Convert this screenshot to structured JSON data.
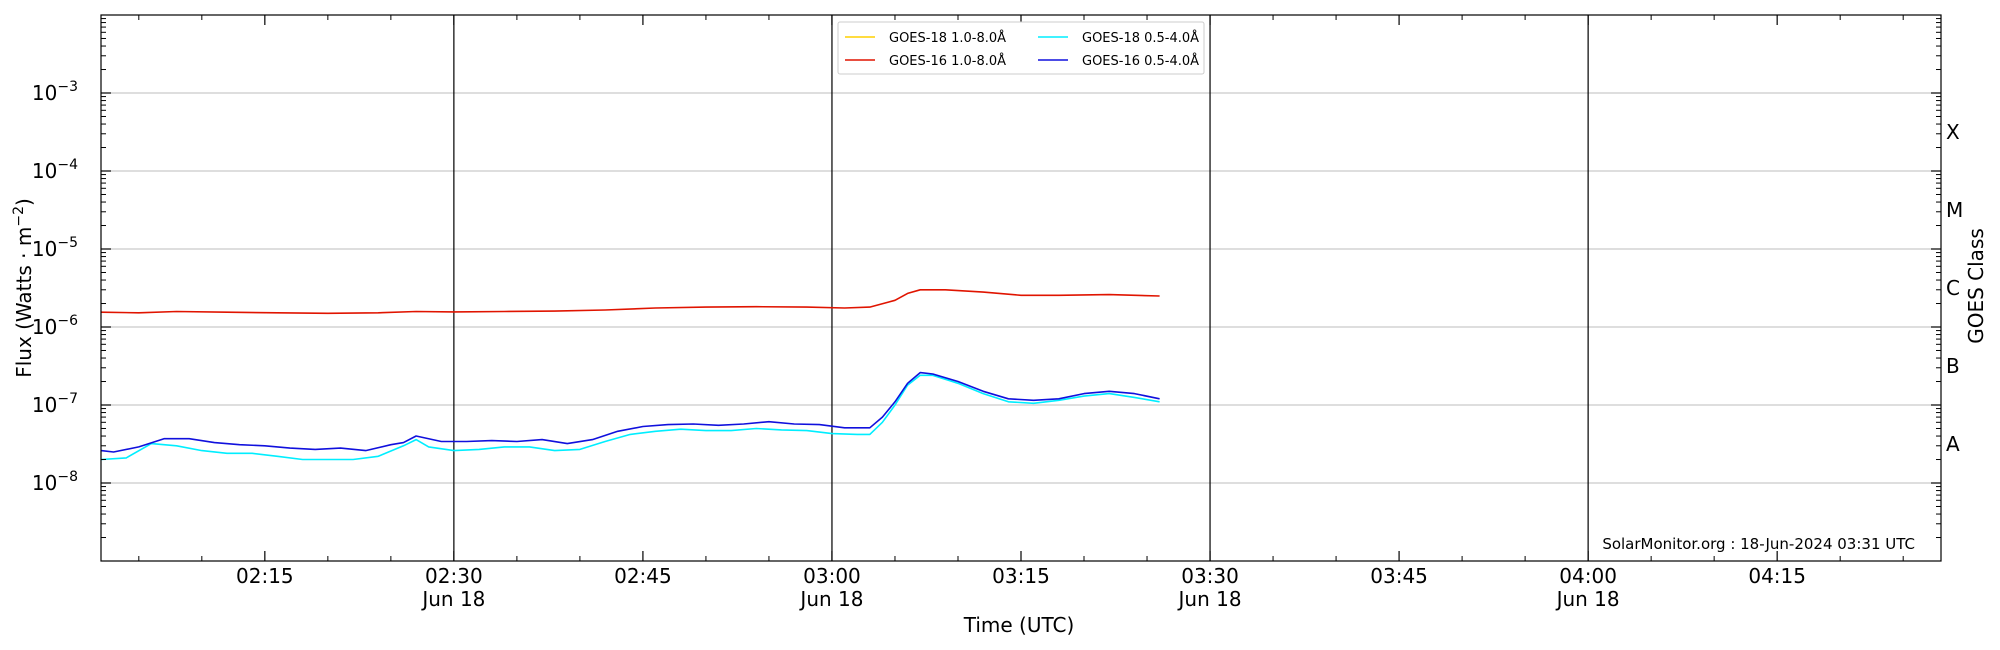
{
  "chart_data": {
    "type": "line",
    "x_axis": {
      "label": "Time (UTC)",
      "range": [
        "02:02",
        "04:28"
      ],
      "ticks": [
        {
          "time": "02:15",
          "label": "02:15",
          "sublabel": ""
        },
        {
          "time": "02:30",
          "label": "02:30",
          "sublabel": "Jun 18"
        },
        {
          "time": "02:45",
          "label": "02:45",
          "sublabel": ""
        },
        {
          "time": "03:00",
          "label": "03:00",
          "sublabel": "Jun 18"
        },
        {
          "time": "03:15",
          "label": "03:15",
          "sublabel": ""
        },
        {
          "time": "03:30",
          "label": "03:30",
          "sublabel": "Jun 18"
        },
        {
          "time": "03:45",
          "label": "03:45",
          "sublabel": ""
        },
        {
          "time": "04:00",
          "label": "04:00",
          "sublabel": "Jun 18"
        },
        {
          "time": "04:15",
          "label": "04:15",
          "sublabel": ""
        }
      ],
      "vertical_lines": [
        "02:30",
        "03:00",
        "03:30",
        "04:00"
      ]
    },
    "y_axis": {
      "label": "Flux (Watts · m",
      "label_sup": "−2",
      "label_end": ")",
      "scale": "log",
      "range": [
        1e-09,
        0.01
      ],
      "ticks": [
        {
          "value": 1e-08,
          "base": "10",
          "exp": "−8"
        },
        {
          "value": 1e-07,
          "base": "10",
          "exp": "−7"
        },
        {
          "value": 1e-06,
          "base": "10",
          "exp": "−6"
        },
        {
          "value": 1e-05,
          "base": "10",
          "exp": "−5"
        },
        {
          "value": 0.0001,
          "base": "10",
          "exp": "−4"
        },
        {
          "value": 0.001,
          "base": "10",
          "exp": "−3"
        }
      ],
      "grid": true
    },
    "right_axis": {
      "label": "GOES Class",
      "classes": [
        {
          "name": "A",
          "value": 3.16e-08
        },
        {
          "name": "B",
          "value": 3.16e-07
        },
        {
          "name": "C",
          "value": 3.16e-06
        },
        {
          "name": "M",
          "value": 3.16e-05
        },
        {
          "name": "X",
          "value": 0.000316
        }
      ]
    },
    "legend": {
      "placement": "top-center",
      "entries": [
        {
          "label": "GOES-18 1.0-8.0Å",
          "color": "#ffd000"
        },
        {
          "label": "GOES-18 0.5-4.0Å",
          "color": "#00eeff"
        },
        {
          "label": "GOES-16 1.0-8.0Å",
          "color": "#e01400"
        },
        {
          "label": "GOES-16 0.5-4.0Å",
          "color": "#1010dd"
        }
      ]
    },
    "annotation": "SolarMonitor.org : 18-Jun-2024 03:31 UTC",
    "series": [
      {
        "name": "GOES-16 1.0-8.0Å",
        "color": "#e01400",
        "points": [
          [
            "02:02",
            1.55e-06
          ],
          [
            "02:05",
            1.52e-06
          ],
          [
            "02:08",
            1.58e-06
          ],
          [
            "02:12",
            1.55e-06
          ],
          [
            "02:16",
            1.52e-06
          ],
          [
            "02:20",
            1.5e-06
          ],
          [
            "02:24",
            1.52e-06
          ],
          [
            "02:27",
            1.58e-06
          ],
          [
            "02:30",
            1.56e-06
          ],
          [
            "02:34",
            1.58e-06
          ],
          [
            "02:38",
            1.6e-06
          ],
          [
            "02:42",
            1.65e-06
          ],
          [
            "02:46",
            1.75e-06
          ],
          [
            "02:50",
            1.8e-06
          ],
          [
            "02:54",
            1.82e-06
          ],
          [
            "02:58",
            1.8e-06
          ],
          [
            "03:01",
            1.75e-06
          ],
          [
            "03:03",
            1.8e-06
          ],
          [
            "03:05",
            2.2e-06
          ],
          [
            "03:06",
            2.7e-06
          ],
          [
            "03:07",
            3e-06
          ],
          [
            "03:09",
            3e-06
          ],
          [
            "03:12",
            2.8e-06
          ],
          [
            "03:15",
            2.55e-06
          ],
          [
            "03:18",
            2.55e-06
          ],
          [
            "03:22",
            2.6e-06
          ],
          [
            "03:26",
            2.5e-06
          ]
        ]
      },
      {
        "name": "GOES-18 0.5-4.0Å",
        "color": "#00eeff",
        "points": [
          [
            "02:02",
            2e-08
          ],
          [
            "02:04",
            2.1e-08
          ],
          [
            "02:06",
            3.2e-08
          ],
          [
            "02:08",
            3e-08
          ],
          [
            "02:10",
            2.6e-08
          ],
          [
            "02:12",
            2.4e-08
          ],
          [
            "02:14",
            2.4e-08
          ],
          [
            "02:16",
            2.2e-08
          ],
          [
            "02:18",
            2e-08
          ],
          [
            "02:20",
            2e-08
          ],
          [
            "02:22",
            2e-08
          ],
          [
            "02:24",
            2.2e-08
          ],
          [
            "02:26",
            3e-08
          ],
          [
            "02:27",
            3.6e-08
          ],
          [
            "02:28",
            2.9e-08
          ],
          [
            "02:30",
            2.6e-08
          ],
          [
            "02:32",
            2.7e-08
          ],
          [
            "02:34",
            2.9e-08
          ],
          [
            "02:36",
            2.9e-08
          ],
          [
            "02:38",
            2.6e-08
          ],
          [
            "02:40",
            2.7e-08
          ],
          [
            "02:42",
            3.4e-08
          ],
          [
            "02:44",
            4.2e-08
          ],
          [
            "02:46",
            4.6e-08
          ],
          [
            "02:48",
            4.9e-08
          ],
          [
            "02:50",
            4.7e-08
          ],
          [
            "02:52",
            4.7e-08
          ],
          [
            "02:54",
            5e-08
          ],
          [
            "02:56",
            4.8e-08
          ],
          [
            "02:58",
            4.7e-08
          ],
          [
            "03:00",
            4.3e-08
          ],
          [
            "03:02",
            4.2e-08
          ],
          [
            "03:03",
            4.2e-08
          ],
          [
            "03:04",
            6e-08
          ],
          [
            "03:05",
            1e-07
          ],
          [
            "03:06",
            1.8e-07
          ],
          [
            "03:07",
            2.4e-07
          ],
          [
            "03:08",
            2.4e-07
          ],
          [
            "03:10",
            1.9e-07
          ],
          [
            "03:12",
            1.4e-07
          ],
          [
            "03:14",
            1.1e-07
          ],
          [
            "03:16",
            1.05e-07
          ],
          [
            "03:18",
            1.15e-07
          ],
          [
            "03:20",
            1.3e-07
          ],
          [
            "03:22",
            1.4e-07
          ],
          [
            "03:24",
            1.25e-07
          ],
          [
            "03:26",
            1.1e-07
          ]
        ]
      },
      {
        "name": "GOES-16 0.5-4.0Å",
        "color": "#1010dd",
        "points": [
          [
            "02:02",
            2.6e-08
          ],
          [
            "02:03",
            2.5e-08
          ],
          [
            "02:05",
            2.9e-08
          ],
          [
            "02:07",
            3.7e-08
          ],
          [
            "02:09",
            3.7e-08
          ],
          [
            "02:11",
            3.3e-08
          ],
          [
            "02:13",
            3.1e-08
          ],
          [
            "02:15",
            3e-08
          ],
          [
            "02:17",
            2.8e-08
          ],
          [
            "02:19",
            2.7e-08
          ],
          [
            "02:21",
            2.8e-08
          ],
          [
            "02:23",
            2.6e-08
          ],
          [
            "02:25",
            3.1e-08
          ],
          [
            "02:26",
            3.3e-08
          ],
          [
            "02:27",
            4e-08
          ],
          [
            "02:29",
            3.4e-08
          ],
          [
            "02:31",
            3.4e-08
          ],
          [
            "02:33",
            3.5e-08
          ],
          [
            "02:35",
            3.4e-08
          ],
          [
            "02:37",
            3.6e-08
          ],
          [
            "02:39",
            3.2e-08
          ],
          [
            "02:41",
            3.6e-08
          ],
          [
            "02:43",
            4.6e-08
          ],
          [
            "02:45",
            5.3e-08
          ],
          [
            "02:47",
            5.6e-08
          ],
          [
            "02:49",
            5.7e-08
          ],
          [
            "02:51",
            5.5e-08
          ],
          [
            "02:53",
            5.7e-08
          ],
          [
            "02:55",
            6.1e-08
          ],
          [
            "02:57",
            5.7e-08
          ],
          [
            "02:59",
            5.6e-08
          ],
          [
            "03:01",
            5.1e-08
          ],
          [
            "03:03",
            5.1e-08
          ],
          [
            "03:04",
            7e-08
          ],
          [
            "03:05",
            1.1e-07
          ],
          [
            "03:06",
            1.9e-07
          ],
          [
            "03:07",
            2.6e-07
          ],
          [
            "03:08",
            2.5e-07
          ],
          [
            "03:10",
            2e-07
          ],
          [
            "03:12",
            1.5e-07
          ],
          [
            "03:14",
            1.2e-07
          ],
          [
            "03:16",
            1.15e-07
          ],
          [
            "03:18",
            1.2e-07
          ],
          [
            "03:20",
            1.4e-07
          ],
          [
            "03:22",
            1.5e-07
          ],
          [
            "03:24",
            1.4e-07
          ],
          [
            "03:26",
            1.2e-07
          ]
        ]
      }
    ]
  }
}
